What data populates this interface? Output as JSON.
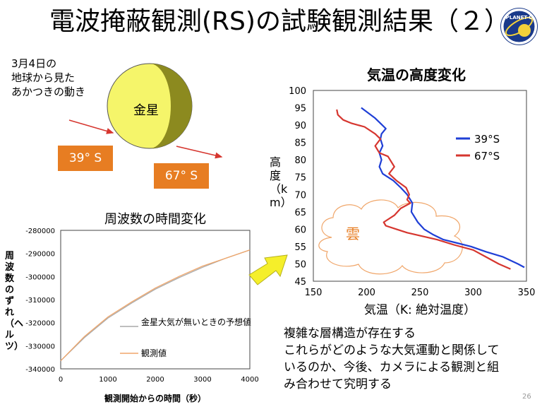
{
  "title": "電波掩蔽観測(RS)の試験観測結果（２）",
  "logo": {
    "text": "PLANET-C",
    "icon": "planet-c-logo"
  },
  "occultation": {
    "caption": "3月4日の\n地球から見た\nあかつきの動き",
    "planet_label": "金星",
    "tag_39": "39° S",
    "tag_67": "67° S"
  },
  "freq_chart": {
    "title": "周波数の時間変化",
    "ylabel": "周波数のずれ（ヘルツ）",
    "xlabel": "観測開始からの時間（秒）"
  },
  "temp_chart": {
    "title": "気温の高度変化",
    "ylabel": "高度（km）",
    "xlabel": "気温（K: 絶対温度）",
    "cloud_label": "雲"
  },
  "summary": [
    "複雑な層構造が存在する",
    "これらがどのような大気運動と関係して",
    "いるのか、今後、カメラによる観測と組",
    "み合わせて究明する"
  ],
  "page_number": "26",
  "colors": {
    "tag": "#e77d22",
    "planet": "#f5f56a",
    "series39": "#1f3fd6",
    "series67": "#d6362f",
    "predicted": "#a9a9a9",
    "observed": "#f0a66a"
  },
  "chart_data": [
    {
      "type": "line",
      "title": "周波数の時間変化",
      "xlabel": "観測開始からの時間（秒）",
      "ylabel": "周波数のずれ（ヘルツ）",
      "xlim": [
        0,
        4000
      ],
      "ylim": [
        -340000,
        -280000
      ],
      "x_ticks": [
        0,
        1000,
        2000,
        3000,
        4000
      ],
      "y_ticks": [
        -280000,
        -290000,
        -300000,
        -310000,
        -320000,
        -330000,
        -340000
      ],
      "x_tick_labels": [
        "0",
        "1000",
        "2000",
        "3000",
        "4000"
      ],
      "y_tick_labels": [
        "-280000",
        "-290000",
        "-300000",
        "-310000",
        "-320000",
        "-330000",
        "-340000"
      ],
      "legend": "center-right",
      "series": [
        {
          "name": "金星大気が無いときの予想値",
          "x": [
            0,
            500,
            1000,
            1500,
            2000,
            2500,
            3000,
            3500,
            4000
          ],
          "y": [
            -336500,
            -326500,
            -318000,
            -311500,
            -305500,
            -300500,
            -296000,
            -292000,
            -288500
          ]
        },
        {
          "name": "観測値",
          "x": [
            0,
            500,
            1000,
            1500,
            2000,
            2500,
            3000,
            3500,
            4000
          ],
          "y": [
            -336500,
            -326000,
            -317500,
            -311000,
            -305000,
            -300000,
            -295500,
            -292000,
            -288500
          ]
        }
      ]
    },
    {
      "type": "line",
      "title": "気温の高度変化",
      "xlabel": "気温（K: 絶対温度）",
      "ylabel": "高度（km）",
      "xlim": [
        150,
        350
      ],
      "ylim": [
        45,
        100
      ],
      "x_ticks": [
        150,
        200,
        250,
        300,
        350
      ],
      "y_ticks": [
        45,
        50,
        55,
        60,
        65,
        70,
        75,
        80,
        85,
        90,
        95,
        100
      ],
      "x_tick_labels": [
        "150",
        "200",
        "250",
        "300",
        "350"
      ],
      "y_tick_labels": [
        "45",
        "50",
        "55",
        "60",
        "65",
        "70",
        "75",
        "80",
        "85",
        "90",
        "95",
        "100"
      ],
      "legend": "upper-right",
      "series": [
        {
          "name": "39°S",
          "points": [
            [
              195,
              95
            ],
            [
              208,
              92
            ],
            [
              213,
              90.5
            ],
            [
              218,
              89
            ],
            [
              214,
              87.5
            ],
            [
              213,
              86
            ],
            [
              215,
              84
            ],
            [
              212,
              82
            ],
            [
              214,
              80
            ],
            [
              212,
              78
            ],
            [
              215,
              76
            ],
            [
              225,
              74
            ],
            [
              232,
              72
            ],
            [
              238,
              70
            ],
            [
              243,
              67.5
            ],
            [
              242,
              65
            ],
            [
              248,
              62
            ],
            [
              254,
              60
            ],
            [
              262,
              58.5
            ],
            [
              272,
              57
            ],
            [
              285,
              56
            ],
            [
              298,
              55
            ],
            [
              312,
              53.5
            ],
            [
              328,
              52
            ],
            [
              342,
              50
            ],
            [
              348,
              49
            ]
          ]
        },
        {
          "name": "67°S",
          "points": [
            [
              172,
              94.5
            ],
            [
              173,
              93
            ],
            [
              178,
              91.5
            ],
            [
              186,
              90.5
            ],
            [
              198,
              89.5
            ],
            [
              208,
              87.5
            ],
            [
              213,
              86
            ],
            [
              208,
              84
            ],
            [
              212,
              82
            ],
            [
              220,
              81
            ],
            [
              226,
              78
            ],
            [
              221,
              76
            ],
            [
              228,
              74
            ],
            [
              237,
              72
            ],
            [
              240,
              70
            ],
            [
              238,
              68.5
            ],
            [
              241,
              67.5
            ],
            [
              232,
              66
            ],
            [
              226,
              64
            ],
            [
              216,
              62
            ],
            [
              218,
              61
            ],
            [
              228,
              60
            ],
            [
              238,
              59
            ],
            [
              252,
              58
            ],
            [
              266,
              57
            ],
            [
              282,
              55.5
            ],
            [
              300,
              54
            ],
            [
              312,
              52
            ],
            [
              324,
              50
            ],
            [
              335,
              48.5
            ]
          ]
        }
      ]
    }
  ]
}
